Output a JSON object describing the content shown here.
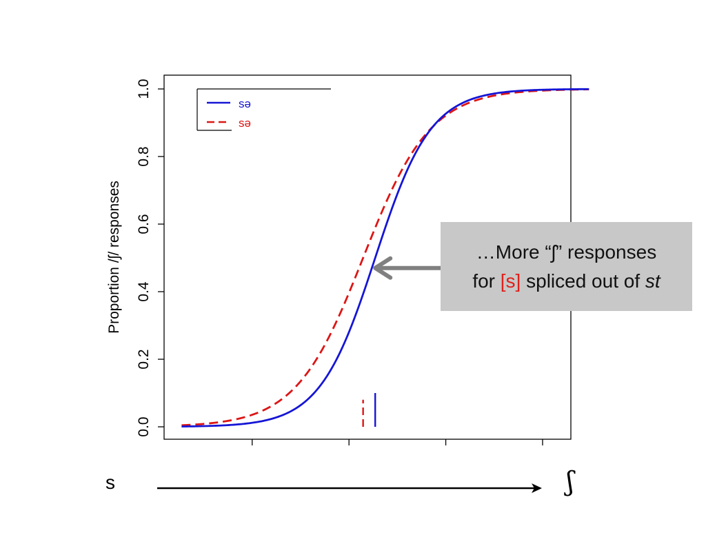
{
  "chart_data": {
    "type": "line",
    "ylabel": "Proportion /ʃ/ responses",
    "xlabel": "",
    "ylim": [
      0,
      1
    ],
    "yticks": [
      "0.0",
      "0.2",
      "0.4",
      "0.6",
      "0.8",
      "1.0"
    ],
    "xlim": [
      0,
      1
    ],
    "xticks": [
      0.215,
      0.455,
      0.695,
      0.935
    ],
    "legend_position": "top-left",
    "legend": [
      {
        "label": "sə",
        "color": "#1515d6",
        "style": "solid"
      },
      {
        "label": "sə",
        "color": "#dd1515",
        "style": "dashed"
      }
    ],
    "series": [
      {
        "color": "#1515d6",
        "style": "solid",
        "midpoint": 0.52,
        "slope": 14.5
      },
      {
        "color": "#dd1515",
        "style": "dashed",
        "midpoint": 0.49,
        "slope": 12.0
      }
    ],
    "x_range": [
      0.04,
      1.05
    ],
    "boundary_markers": [
      {
        "x": 0.52,
        "y_top": 0.1,
        "color": "#1515d6",
        "style": "solid"
      },
      {
        "x": 0.49,
        "y_top": 0.08,
        "color": "#dd1515",
        "style": "dashed"
      }
    ],
    "annotation": {
      "line1": "…More “ʃ” responses",
      "line2_pre": "for ",
      "line2_red": "[s]",
      "line2_mid": " spliced out of ",
      "line2_ital": "st",
      "arrow_color": "#808080",
      "arrow_tip": {
        "x": 0.52,
        "y": 0.47
      }
    },
    "continuum": {
      "left_label": "s",
      "right_label": "ʃ"
    }
  }
}
